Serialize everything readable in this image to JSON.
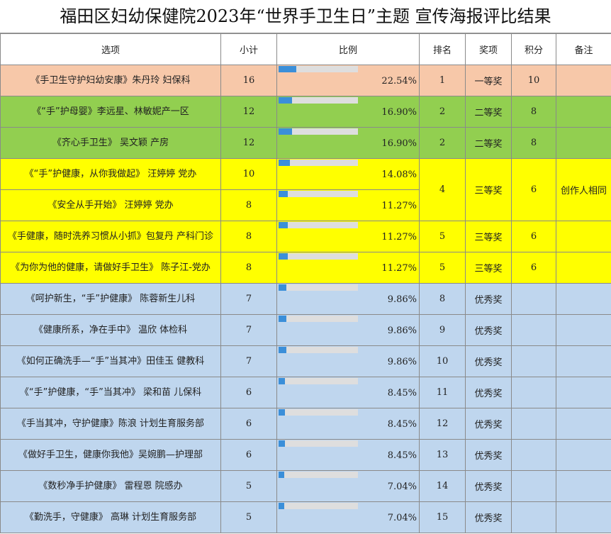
{
  "title": "福田区妇幼保健院2023年“世界手卫生日”主题 宣传海报评比结果",
  "headers": [
    "选项",
    "小计",
    "比例",
    "排名",
    "奖项",
    "积分",
    "备注"
  ],
  "colors": {
    "peach": "#f7c8a9",
    "green": "#92cf50",
    "yellow": "#ffff00",
    "blue": "#bfd6ee",
    "bar": "#3b8fd9",
    "track": "#dedede"
  },
  "rows": [
    {
      "name": "《手卫生守护妇幼安康》朱丹玲 妇保科",
      "count": "16",
      "ratio": "22.54%",
      "ratio_value": 0.2254,
      "rank": "1",
      "award": "一等奖",
      "points": "10",
      "note": "",
      "band": "peach"
    },
    {
      "name": "《“手”护母婴》李远星、林敏妮产一区",
      "count": "12",
      "ratio": "16.90%",
      "ratio_value": 0.169,
      "rank": "2",
      "award": "二等奖",
      "points": "8",
      "note": "",
      "band": "green"
    },
    {
      "name": "《齐心手卫生》 吴文颖 产房",
      "count": "12",
      "ratio": "16.90%",
      "ratio_value": 0.169,
      "rank": "2",
      "award": "二等奖",
      "points": "8",
      "note": "",
      "band": "green"
    },
    {
      "name": "《“手”护健康，从你我做起》 汪婷婷 党办",
      "count": "10",
      "ratio": "14.08%",
      "ratio_value": 0.1408,
      "rank": "4",
      "award": "三等奖",
      "points": "6",
      "note": "创作人相同",
      "band": "yellow"
    },
    {
      "name": "《安全从手开始》 汪婷婷 党办",
      "count": "8",
      "ratio": "11.27%",
      "ratio_value": 0.1127,
      "rank": "",
      "award": "",
      "points": "",
      "note": "",
      "band": "yellow"
    },
    {
      "name": "《手健康，随时洗养习惯从小抓》包复丹 产科门诊",
      "count": "8",
      "ratio": "11.27%",
      "ratio_value": 0.1127,
      "rank": "5",
      "award": "三等奖",
      "points": "6",
      "note": "",
      "band": "yellow"
    },
    {
      "name": "《为你为他的健康，请做好手卫生》 陈子江-党办",
      "count": "8",
      "ratio": "11.27%",
      "ratio_value": 0.1127,
      "rank": "5",
      "award": "三等奖",
      "points": "6",
      "note": "",
      "band": "yellow"
    },
    {
      "name": "《呵护新生，“手”护健康》 陈蓉新生儿科",
      "count": "7",
      "ratio": "9.86%",
      "ratio_value": 0.0986,
      "rank": "8",
      "award": "优秀奖",
      "points": "",
      "note": "",
      "band": "blue"
    },
    {
      "name": "《健康所系，净在手中》 温欣 体检科",
      "count": "7",
      "ratio": "9.86%",
      "ratio_value": 0.0986,
      "rank": "9",
      "award": "优秀奖",
      "points": "",
      "note": "",
      "band": "blue"
    },
    {
      "name": "《如何正确洗手—“手”当其冲》田佳玉 健教科",
      "count": "7",
      "ratio": "9.86%",
      "ratio_value": 0.0986,
      "rank": "10",
      "award": "优秀奖",
      "points": "",
      "note": "",
      "band": "blue"
    },
    {
      "name": "《“手”护健康，“手”当其冲》 梁和苗 儿保科",
      "count": "6",
      "ratio": "8.45%",
      "ratio_value": 0.0845,
      "rank": "11",
      "award": "优秀奖",
      "points": "",
      "note": "",
      "band": "blue"
    },
    {
      "name": "《手当其冲，守护健康》陈浪 计划生育服务部",
      "count": "6",
      "ratio": "8.45%",
      "ratio_value": 0.0845,
      "rank": "12",
      "award": "优秀奖",
      "points": "",
      "note": "",
      "band": "blue"
    },
    {
      "name": "《做好手卫生，健康你我他》吴婉鹏—护理部",
      "count": "6",
      "ratio": "8.45%",
      "ratio_value": 0.0845,
      "rank": "13",
      "award": "优秀奖",
      "points": "",
      "note": "",
      "band": "blue"
    },
    {
      "name": "《数秒净手护健康》 雷程恩 院感办",
      "count": "5",
      "ratio": "7.04%",
      "ratio_value": 0.0704,
      "rank": "14",
      "award": "优秀奖",
      "points": "",
      "note": "",
      "band": "blue"
    },
    {
      "name": "《勤洗手，守健康》 高琳 计划生育服务部",
      "count": "5",
      "ratio": "7.04%",
      "ratio_value": 0.0704,
      "rank": "15",
      "award": "优秀奖",
      "points": "",
      "note": "",
      "band": "blue"
    }
  ]
}
